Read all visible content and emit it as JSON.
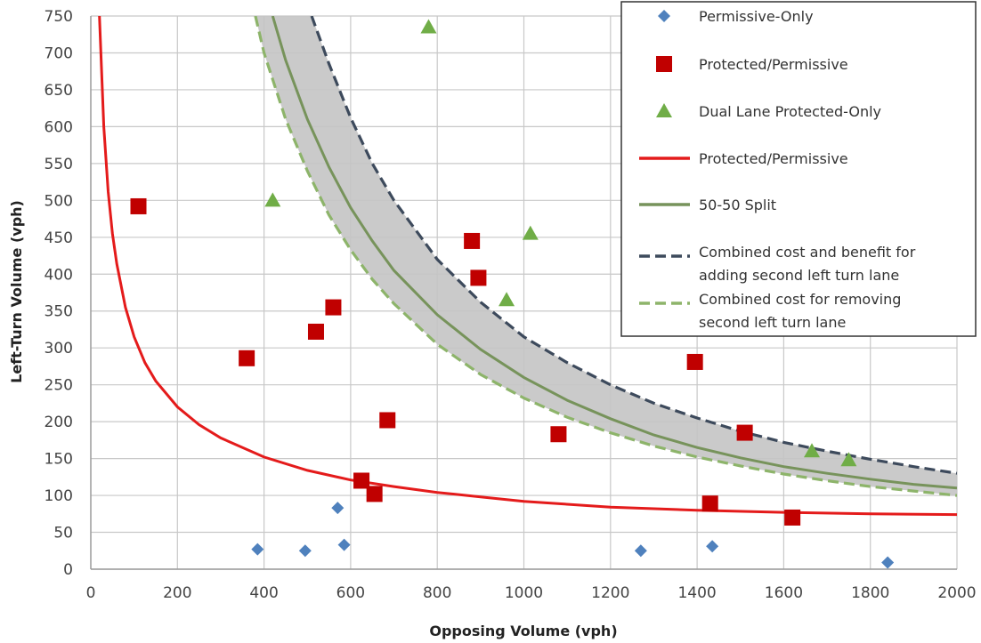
{
  "chart_data": {
    "type": "scatter",
    "xlabel": "Opposing Volume (vph)",
    "ylabel": "Left-Turn Volume (vph)",
    "xlim": [
      0,
      2000
    ],
    "ylim": [
      0,
      750
    ],
    "xticks": [
      0,
      200,
      400,
      600,
      800,
      1000,
      1200,
      1400,
      1600,
      1800,
      2000
    ],
    "yticks": [
      0,
      50,
      100,
      150,
      200,
      250,
      300,
      350,
      400,
      450,
      500,
      550,
      600,
      650,
      700,
      750
    ],
    "grid": true,
    "legend_position": "top-right",
    "scatter_series": [
      {
        "name": "Permissive-Only",
        "marker": "diamond",
        "color": "#4f81bd",
        "points": [
          {
            "x": 385,
            "y": 27
          },
          {
            "x": 495,
            "y": 25
          },
          {
            "x": 570,
            "y": 83
          },
          {
            "x": 585,
            "y": 33
          },
          {
            "x": 1270,
            "y": 25
          },
          {
            "x": 1435,
            "y": 31
          },
          {
            "x": 1840,
            "y": 9
          }
        ]
      },
      {
        "name": "Protected/Permissive",
        "marker": "square",
        "color": "#c00000",
        "points": [
          {
            "x": 110,
            "y": 492
          },
          {
            "x": 360,
            "y": 286
          },
          {
            "x": 520,
            "y": 322
          },
          {
            "x": 560,
            "y": 355
          },
          {
            "x": 625,
            "y": 120
          },
          {
            "x": 655,
            "y": 102
          },
          {
            "x": 685,
            "y": 202
          },
          {
            "x": 880,
            "y": 445
          },
          {
            "x": 895,
            "y": 395
          },
          {
            "x": 1080,
            "y": 183
          },
          {
            "x": 1395,
            "y": 281
          },
          {
            "x": 1430,
            "y": 89
          },
          {
            "x": 1510,
            "y": 185
          },
          {
            "x": 1620,
            "y": 70
          }
        ]
      },
      {
        "name": "Dual Lane Protected-Only",
        "marker": "triangle",
        "color": "#70ad47",
        "points": [
          {
            "x": 420,
            "y": 500
          },
          {
            "x": 780,
            "y": 735
          },
          {
            "x": 960,
            "y": 365
          },
          {
            "x": 1015,
            "y": 455
          },
          {
            "x": 1665,
            "y": 160
          },
          {
            "x": 1750,
            "y": 148
          }
        ]
      }
    ],
    "line_series": [
      {
        "name": "Protected/Permissive",
        "style": "solid",
        "color": "#e41b1b",
        "x": [
          20,
          30,
          40,
          50,
          60,
          80,
          100,
          125,
          150,
          200,
          250,
          300,
          400,
          500,
          600,
          700,
          800,
          900,
          1000,
          1200,
          1400,
          1600,
          1800,
          2000
        ],
        "y": [
          750,
          600,
          512,
          455,
          414,
          355,
          315,
          280,
          255,
          220,
          196,
          178,
          152,
          134,
          121,
          112,
          104,
          98,
          92,
          84,
          80,
          77,
          75,
          74
        ]
      },
      {
        "name": "50-50 Split",
        "style": "solid",
        "color": "#77935b",
        "x": [
          420,
          450,
          500,
          550,
          600,
          650,
          700,
          800,
          900,
          1000,
          1100,
          1200,
          1300,
          1400,
          1500,
          1600,
          1700,
          1800,
          1900,
          2000
        ],
        "y": [
          750,
          690,
          610,
          545,
          490,
          445,
          405,
          345,
          298,
          260,
          229,
          204,
          182,
          165,
          151,
          139,
          130,
          122,
          115,
          110
        ]
      },
      {
        "name": "Combined cost and benefit for adding second left turn lane",
        "style": "dashed",
        "color": "#3d4a5c",
        "x": [
          510,
          550,
          600,
          650,
          700,
          800,
          900,
          1000,
          1100,
          1200,
          1300,
          1400,
          1500,
          1600,
          1700,
          1800,
          1900,
          2000
        ],
        "y": [
          750,
          685,
          612,
          550,
          500,
          420,
          362,
          315,
          280,
          250,
          225,
          205,
          187,
          172,
          160,
          149,
          139,
          130
        ]
      },
      {
        "name": "Combined cost for removing second left turn lane",
        "style": "dashed",
        "color": "#8db46a",
        "x": [
          380,
          400,
          450,
          500,
          550,
          600,
          650,
          700,
          800,
          900,
          1000,
          1100,
          1200,
          1300,
          1400,
          1500,
          1600,
          1700,
          1800,
          1900,
          2000
        ],
        "y": [
          750,
          700,
          610,
          540,
          480,
          433,
          393,
          360,
          305,
          264,
          232,
          206,
          185,
          167,
          152,
          140,
          129,
          120,
          112,
          106,
          100
        ]
      }
    ],
    "band": {
      "fill": "#c4c4c4",
      "between": [
        "Combined cost and benefit for adding second left turn lane",
        "Combined cost for removing second left turn lane"
      ]
    },
    "legend": [
      {
        "label": "Permissive-Only",
        "kind": "diamond",
        "color": "#4f81bd"
      },
      {
        "label": "Protected/Permissive",
        "kind": "square",
        "color": "#c00000"
      },
      {
        "label": "Dual Lane Protected-Only",
        "kind": "triangle",
        "color": "#70ad47"
      },
      {
        "label": "Protected/Permissive",
        "kind": "line",
        "color": "#e41b1b"
      },
      {
        "label": "50-50 Split",
        "kind": "line",
        "color": "#77935b"
      },
      {
        "label": "Combined cost and benefit for adding second left turn lane",
        "lines": [
          "Combined cost and benefit for",
          "adding second left turn lane"
        ],
        "kind": "dash",
        "color": "#3d4a5c"
      },
      {
        "label": "Combined cost for removing second left turn lane",
        "lines": [
          "Combined cost for removing",
          "second left turn lane"
        ],
        "kind": "dash",
        "color": "#8db46a"
      }
    ]
  }
}
